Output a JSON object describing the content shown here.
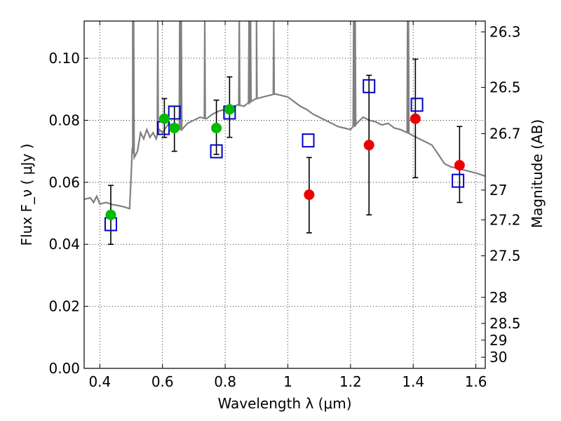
{
  "chart_data": {
    "type": "scatter",
    "xlabel": "Wavelength  λ (μm)",
    "ylabel": "Flux  F_ν  ( μJy )",
    "right_ylabel": "Magnitude (AB)",
    "xlim": [
      0.35,
      1.63
    ],
    "ylim": [
      0.0,
      0.112
    ],
    "grid": true,
    "x_ticks": [
      0.4,
      0.6,
      0.8,
      1.0,
      1.2,
      1.4,
      1.6
    ],
    "x_tick_labels": [
      "0.4",
      "0.6",
      "0.8",
      "1",
      "1.2",
      "1.4",
      "1.6"
    ],
    "y_ticks": [
      0.0,
      0.02,
      0.04,
      0.06,
      0.08,
      0.1
    ],
    "y_tick_labels": [
      "0.00",
      "0.02",
      "0.04",
      "0.06",
      "0.08",
      "0.10"
    ],
    "right_ticks": [
      {
        "flux": 0.1085,
        "label": "26.3"
      },
      {
        "flux": 0.0906,
        "label": "26.5"
      },
      {
        "flux": 0.0757,
        "label": "26.7"
      },
      {
        "flux": 0.0575,
        "label": "27"
      },
      {
        "flux": 0.0479,
        "label": "27.2"
      },
      {
        "flux": 0.0363,
        "label": "27.5"
      },
      {
        "flux": 0.0229,
        "label": "28"
      },
      {
        "flux": 0.0145,
        "label": "28.5"
      },
      {
        "flux": 0.0091,
        "label": "29"
      },
      {
        "flux": 0.0036,
        "label": "30"
      }
    ],
    "series": [
      {
        "marker": "square",
        "color": "#0000cc",
        "points": [
          {
            "x": 0.435,
            "y": 0.0465
          },
          {
            "x": 0.603,
            "y": 0.0775
          },
          {
            "x": 0.638,
            "y": 0.0825
          },
          {
            "x": 0.772,
            "y": 0.07
          },
          {
            "x": 0.814,
            "y": 0.0825
          },
          {
            "x": 1.065,
            "y": 0.0735
          },
          {
            "x": 1.259,
            "y": 0.091
          },
          {
            "x": 1.412,
            "y": 0.085
          },
          {
            "x": 1.543,
            "y": 0.0605
          }
        ]
      },
      {
        "marker": "circle",
        "color": "#00bb00",
        "points": [
          {
            "x": 0.435,
            "y": 0.0495,
            "ylo": 0.04,
            "yhi": 0.059
          },
          {
            "x": 0.606,
            "y": 0.0805,
            "ylo": 0.0745,
            "yhi": 0.087
          },
          {
            "x": 0.638,
            "y": 0.0775,
            "ylo": 0.07,
            "yhi": 0.0845
          },
          {
            "x": 0.772,
            "y": 0.0775,
            "ylo": 0.069,
            "yhi": 0.0865
          },
          {
            "x": 0.814,
            "y": 0.0835,
            "ylo": 0.0745,
            "yhi": 0.094
          }
        ]
      },
      {
        "marker": "circle",
        "color": "#ee0000",
        "points": [
          {
            "x": 1.068,
            "y": 0.056,
            "ylo": 0.0437,
            "yhi": 0.068
          },
          {
            "x": 1.259,
            "y": 0.072,
            "ylo": 0.0495,
            "yhi": 0.0945
          },
          {
            "x": 1.407,
            "y": 0.0805,
            "ylo": 0.0615,
            "yhi": 0.0997
          },
          {
            "x": 1.548,
            "y": 0.0655,
            "ylo": 0.0535,
            "yhi": 0.078
          }
        ]
      }
    ],
    "spectrum": {
      "color": "#808080",
      "points": [
        [
          0.35,
          0.0545
        ],
        [
          0.37,
          0.055
        ],
        [
          0.38,
          0.0535
        ],
        [
          0.39,
          0.0555
        ],
        [
          0.4,
          0.053
        ],
        [
          0.42,
          0.0535
        ],
        [
          0.44,
          0.0528
        ],
        [
          0.46,
          0.0525
        ],
        [
          0.48,
          0.052
        ],
        [
          0.495,
          0.0515
        ],
        [
          0.5,
          0.062
        ],
        [
          0.505,
          0.071
        ],
        [
          0.51,
          0.068
        ],
        [
          0.52,
          0.07
        ],
        [
          0.53,
          0.076
        ],
        [
          0.54,
          0.074
        ],
        [
          0.55,
          0.077
        ],
        [
          0.56,
          0.0745
        ],
        [
          0.57,
          0.076
        ],
        [
          0.58,
          0.074
        ],
        [
          0.59,
          0.077
        ],
        [
          0.6,
          0.076
        ],
        [
          0.62,
          0.079
        ],
        [
          0.64,
          0.078
        ],
        [
          0.66,
          0.077
        ],
        [
          0.68,
          0.079
        ],
        [
          0.7,
          0.08
        ],
        [
          0.72,
          0.081
        ],
        [
          0.74,
          0.0805
        ],
        [
          0.76,
          0.082
        ],
        [
          0.78,
          0.083
        ],
        [
          0.8,
          0.0835
        ],
        [
          0.82,
          0.084
        ],
        [
          0.84,
          0.085
        ],
        [
          0.86,
          0.0845
        ],
        [
          0.88,
          0.086
        ],
        [
          0.9,
          0.087
        ],
        [
          0.92,
          0.0875
        ],
        [
          0.94,
          0.088
        ],
        [
          0.96,
          0.0885
        ],
        [
          0.98,
          0.088
        ],
        [
          1.0,
          0.0875
        ],
        [
          1.02,
          0.086
        ],
        [
          1.04,
          0.0845
        ],
        [
          1.06,
          0.0835
        ],
        [
          1.08,
          0.082
        ],
        [
          1.1,
          0.081
        ],
        [
          1.12,
          0.08
        ],
        [
          1.14,
          0.079
        ],
        [
          1.16,
          0.078
        ],
        [
          1.18,
          0.0775
        ],
        [
          1.2,
          0.077
        ],
        [
          1.22,
          0.079
        ],
        [
          1.24,
          0.081
        ],
        [
          1.26,
          0.08
        ],
        [
          1.28,
          0.0795
        ],
        [
          1.3,
          0.0785
        ],
        [
          1.32,
          0.079
        ],
        [
          1.34,
          0.0775
        ],
        [
          1.36,
          0.077
        ],
        [
          1.38,
          0.076
        ],
        [
          1.4,
          0.075
        ],
        [
          1.42,
          0.074
        ],
        [
          1.44,
          0.073
        ],
        [
          1.46,
          0.072
        ],
        [
          1.48,
          0.069
        ],
        [
          1.5,
          0.066
        ],
        [
          1.52,
          0.065
        ],
        [
          1.54,
          0.0645
        ],
        [
          1.56,
          0.064
        ],
        [
          1.58,
          0.0635
        ],
        [
          1.6,
          0.063
        ],
        [
          1.63,
          0.062
        ]
      ],
      "spikes": [
        {
          "x": 0.505,
          "y": 0.112
        },
        {
          "x": 0.508,
          "y": 0.112
        },
        {
          "x": 0.585,
          "y": 0.112
        },
        {
          "x": 0.655,
          "y": 0.112
        },
        {
          "x": 0.66,
          "y": 0.112
        },
        {
          "x": 0.735,
          "y": 0.112
        },
        {
          "x": 0.845,
          "y": 0.112
        },
        {
          "x": 0.876,
          "y": 0.112
        },
        {
          "x": 0.881,
          "y": 0.112
        },
        {
          "x": 0.9,
          "y": 0.112
        },
        {
          "x": 0.955,
          "y": 0.112
        },
        {
          "x": 1.21,
          "y": 0.112
        },
        {
          "x": 1.215,
          "y": 0.112
        },
        {
          "x": 1.382,
          "y": 0.112
        },
        {
          "x": 1.385,
          "y": 0.112
        }
      ]
    }
  }
}
